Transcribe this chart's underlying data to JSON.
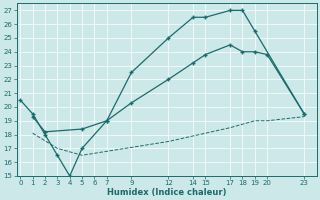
{
  "xlabel": "Humidex (Indice chaleur)",
  "bg_color": "#cce8e8",
  "line_color": "#1a6b6b",
  "grid_color": "#ffffff",
  "ylim": [
    15,
    27.5
  ],
  "yticks": [
    15,
    16,
    17,
    18,
    19,
    20,
    21,
    22,
    23,
    24,
    25,
    26,
    27
  ],
  "xticks": [
    0,
    1,
    2,
    3,
    4,
    5,
    6,
    7,
    9,
    12,
    14,
    15,
    17,
    18,
    19,
    20,
    23
  ],
  "xlim": [
    -0.3,
    24.0
  ],
  "line1_x": [
    0,
    1,
    2,
    3,
    4,
    5,
    7,
    9,
    12,
    14,
    15,
    17,
    18,
    19,
    23
  ],
  "line1_y": [
    20.5,
    19.5,
    18.0,
    16.5,
    15.0,
    17.0,
    19.0,
    22.5,
    25.0,
    26.5,
    26.5,
    27.0,
    27.0,
    25.5,
    19.5
  ],
  "line2_x": [
    1,
    2,
    5,
    7,
    9,
    12,
    14,
    15,
    17,
    18,
    19,
    20,
    23
  ],
  "line2_y": [
    19.3,
    18.2,
    18.4,
    19.0,
    20.3,
    22.0,
    23.2,
    23.8,
    24.5,
    24.0,
    24.0,
    23.8,
    19.5
  ],
  "line3_x": [
    1,
    3,
    5,
    12,
    17,
    19,
    20,
    23
  ],
  "line3_y": [
    18.1,
    17.0,
    16.5,
    17.5,
    18.5,
    19.0,
    19.0,
    19.3
  ]
}
